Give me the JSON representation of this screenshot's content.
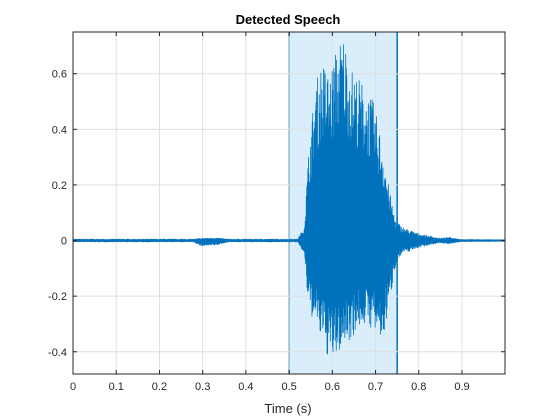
{
  "chart_data": {
    "type": "line",
    "title": "Detected Speech",
    "xlabel": "Time (s)",
    "ylabel": "",
    "xlim": [
      0,
      0.9995
    ],
    "ylim": [
      -0.48,
      0.75
    ],
    "x_ticks": [
      0,
      0.1,
      0.2,
      0.3,
      0.4,
      0.5,
      0.6,
      0.7,
      0.8,
      0.9
    ],
    "x_tick_labels": [
      "0",
      "0.1",
      "0.2",
      "0.3",
      "0.4",
      "0.5",
      "0.6",
      "0.7",
      "0.8",
      "0.9"
    ],
    "y_ticks": [
      -0.4,
      -0.2,
      0,
      0.2,
      0.4,
      0.6
    ],
    "y_tick_labels": [
      "-0.4",
      "-0.2",
      "0",
      "0.2",
      "0.4",
      "0.6"
    ],
    "grid": true,
    "detected_region": {
      "x_start": 0.5,
      "x_end": 0.75
    },
    "series": [
      {
        "name": "",
        "envelope_points": [
          {
            "t": 0.0,
            "max": 0.005,
            "min": -0.005
          },
          {
            "t": 0.28,
            "max": 0.005,
            "min": -0.005
          },
          {
            "t": 0.295,
            "max": 0.008,
            "min": -0.02
          },
          {
            "t": 0.33,
            "max": 0.01,
            "min": -0.018
          },
          {
            "t": 0.36,
            "max": 0.005,
            "min": -0.005
          },
          {
            "t": 0.52,
            "max": 0.005,
            "min": -0.005
          },
          {
            "t": 0.535,
            "max": 0.05,
            "min": -0.05
          },
          {
            "t": 0.545,
            "max": 0.32,
            "min": -0.25
          },
          {
            "t": 0.56,
            "max": 0.55,
            "min": -0.3
          },
          {
            "t": 0.575,
            "max": 0.65,
            "min": -0.36
          },
          {
            "t": 0.595,
            "max": 0.6,
            "min": -0.44
          },
          {
            "t": 0.61,
            "max": 0.7,
            "min": -0.42
          },
          {
            "t": 0.625,
            "max": 0.75,
            "min": -0.38
          },
          {
            "t": 0.645,
            "max": 0.62,
            "min": -0.35
          },
          {
            "t": 0.67,
            "max": 0.57,
            "min": -0.3
          },
          {
            "t": 0.695,
            "max": 0.5,
            "min": -0.32
          },
          {
            "t": 0.715,
            "max": 0.36,
            "min": -0.38
          },
          {
            "t": 0.73,
            "max": 0.2,
            "min": -0.25
          },
          {
            "t": 0.745,
            "max": 0.08,
            "min": -0.1
          },
          {
            "t": 0.76,
            "max": 0.05,
            "min": -0.05
          },
          {
            "t": 0.8,
            "max": 0.025,
            "min": -0.025
          },
          {
            "t": 0.85,
            "max": 0.008,
            "min": -0.008
          },
          {
            "t": 0.87,
            "max": 0.012,
            "min": -0.012
          },
          {
            "t": 0.9,
            "max": 0.004,
            "min": -0.004
          },
          {
            "t": 0.9995,
            "max": 0.003,
            "min": -0.003
          }
        ]
      }
    ]
  },
  "colors": {
    "signal": "#0072BD",
    "region_fill": "#D9EEFA",
    "region_edge": "#0072BD",
    "axes": "#262626",
    "grid": "#DFDFDF"
  }
}
